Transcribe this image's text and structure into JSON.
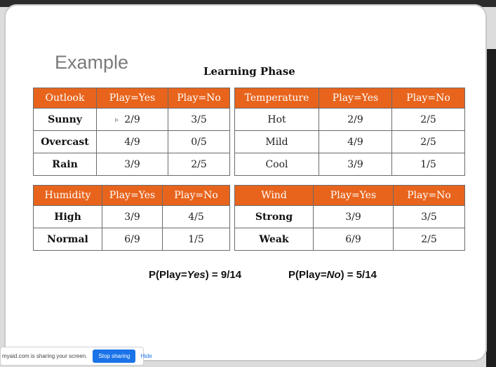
{
  "slide": {
    "title": "Example",
    "subtitle": "Learning Phase"
  },
  "tables": {
    "outlook": {
      "headers": [
        "Outlook",
        "Play=Yes",
        "Play=No"
      ],
      "rows": [
        [
          "Sunny",
          "2/9",
          "3/5"
        ],
        [
          "Overcast",
          "4/9",
          "0/5"
        ],
        [
          "Rain",
          "3/9",
          "2/5"
        ]
      ]
    },
    "temperature": {
      "headers": [
        "Temperature",
        "Play=Yes",
        "Play=No"
      ],
      "rows": [
        [
          "Hot",
          "2/9",
          "2/5"
        ],
        [
          "Mild",
          "4/9",
          "2/5"
        ],
        [
          "Cool",
          "3/9",
          "1/5"
        ]
      ]
    },
    "humidity": {
      "headers": [
        "Humidity",
        "Play=Yes",
        "Play=No"
      ],
      "rows": [
        [
          "High",
          "3/9",
          "4/5"
        ],
        [
          "Normal",
          "6/9",
          "1/5"
        ]
      ]
    },
    "wind": {
      "headers": [
        "Wind",
        "Play=Yes",
        "Play=No"
      ],
      "rows": [
        [
          "Strong",
          "3/9",
          "3/5"
        ],
        [
          "Weak",
          "6/9",
          "2/5"
        ]
      ]
    }
  },
  "formulas": {
    "yes": {
      "prefix": "P(Play=",
      "value": "Yes",
      "suffix": ") = 9/14"
    },
    "no": {
      "prefix": "P(Play=",
      "value": "No",
      "suffix": ") = 5/14"
    }
  },
  "share_bar": {
    "message": "myaid.com is sharing your screen.",
    "stop_label": "Stop sharing",
    "hide_label": "Hide"
  },
  "colors": {
    "header_bg": "#e8641c",
    "share_button": "#1a73e8"
  },
  "icons": {
    "cursor": "mouse-pointer-icon"
  }
}
